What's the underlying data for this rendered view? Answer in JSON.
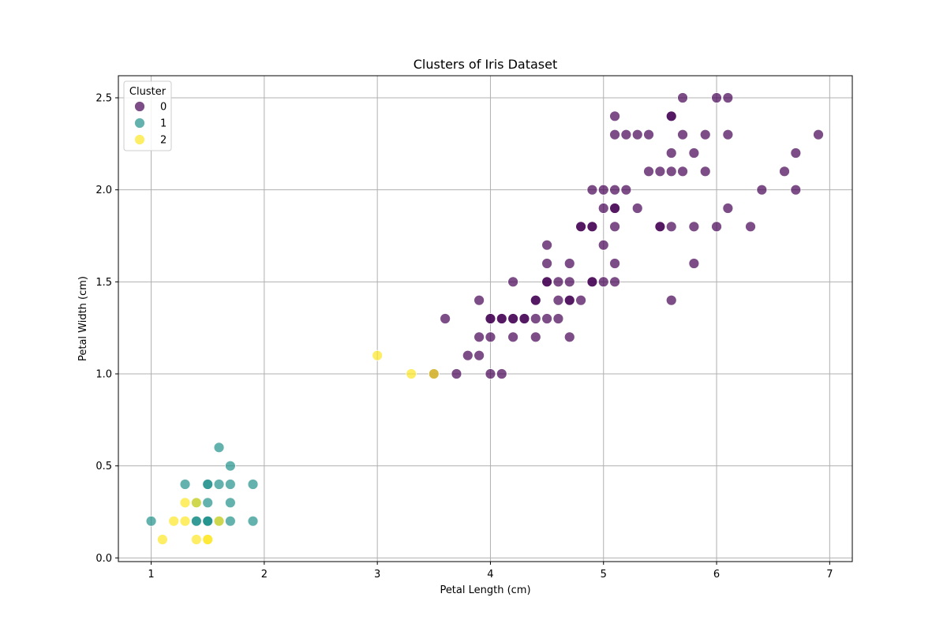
{
  "chart_data": {
    "type": "scatter",
    "title": "Clusters of Iris Dataset",
    "xlabel": "Petal Length (cm)",
    "ylabel": "Petal Width (cm)",
    "xlim": [
      0.71,
      7.2
    ],
    "ylim": [
      -0.02,
      2.62
    ],
    "xticks": [
      1,
      2,
      3,
      4,
      5,
      6,
      7
    ],
    "yticks": [
      0.0,
      0.5,
      1.0,
      1.5,
      2.0,
      2.5
    ],
    "grid": true,
    "legend": {
      "title": "Cluster",
      "placement": "top-left"
    },
    "series": [
      {
        "name": "0",
        "color": "#440154",
        "points": [
          [
            3.5,
            1.0
          ],
          [
            3.6,
            1.3
          ],
          [
            3.7,
            1.0
          ],
          [
            3.8,
            1.1
          ],
          [
            3.9,
            1.1
          ],
          [
            3.9,
            1.2
          ],
          [
            3.9,
            1.4
          ],
          [
            4.0,
            1.0
          ],
          [
            4.0,
            1.2
          ],
          [
            4.0,
            1.3
          ],
          [
            4.0,
            1.3
          ],
          [
            4.1,
            1.0
          ],
          [
            4.1,
            1.3
          ],
          [
            4.1,
            1.3
          ],
          [
            4.2,
            1.2
          ],
          [
            4.2,
            1.3
          ],
          [
            4.2,
            1.3
          ],
          [
            4.2,
            1.5
          ],
          [
            4.3,
            1.3
          ],
          [
            4.3,
            1.3
          ],
          [
            4.4,
            1.2
          ],
          [
            4.4,
            1.3
          ],
          [
            4.4,
            1.4
          ],
          [
            4.4,
            1.4
          ],
          [
            4.5,
            1.3
          ],
          [
            4.5,
            1.5
          ],
          [
            4.5,
            1.5
          ],
          [
            4.5,
            1.6
          ],
          [
            4.5,
            1.7
          ],
          [
            4.6,
            1.3
          ],
          [
            4.6,
            1.4
          ],
          [
            4.6,
            1.5
          ],
          [
            4.7,
            1.2
          ],
          [
            4.7,
            1.4
          ],
          [
            4.7,
            1.4
          ],
          [
            4.7,
            1.5
          ],
          [
            4.7,
            1.6
          ],
          [
            4.8,
            1.4
          ],
          [
            4.8,
            1.8
          ],
          [
            4.8,
            1.8
          ],
          [
            4.9,
            1.5
          ],
          [
            4.9,
            1.5
          ],
          [
            4.9,
            1.8
          ],
          [
            4.9,
            1.8
          ],
          [
            4.9,
            2.0
          ],
          [
            5.0,
            1.5
          ],
          [
            5.0,
            1.7
          ],
          [
            5.0,
            1.9
          ],
          [
            5.0,
            2.0
          ],
          [
            5.1,
            1.5
          ],
          [
            5.1,
            1.6
          ],
          [
            5.1,
            1.8
          ],
          [
            5.1,
            1.9
          ],
          [
            5.1,
            1.9
          ],
          [
            5.1,
            2.0
          ],
          [
            5.1,
            2.3
          ],
          [
            5.1,
            2.4
          ],
          [
            5.2,
            2.0
          ],
          [
            5.2,
            2.3
          ],
          [
            5.3,
            1.9
          ],
          [
            5.3,
            2.3
          ],
          [
            5.4,
            2.1
          ],
          [
            5.4,
            2.3
          ],
          [
            5.5,
            1.8
          ],
          [
            5.5,
            1.8
          ],
          [
            5.5,
            2.1
          ],
          [
            5.6,
            1.4
          ],
          [
            5.6,
            1.8
          ],
          [
            5.6,
            2.1
          ],
          [
            5.6,
            2.2
          ],
          [
            5.6,
            2.4
          ],
          [
            5.6,
            2.4
          ],
          [
            5.7,
            2.1
          ],
          [
            5.7,
            2.3
          ],
          [
            5.7,
            2.5
          ],
          [
            5.8,
            1.6
          ],
          [
            5.8,
            1.8
          ],
          [
            5.8,
            2.2
          ],
          [
            5.9,
            2.1
          ],
          [
            5.9,
            2.3
          ],
          [
            6.0,
            1.8
          ],
          [
            6.0,
            2.5
          ],
          [
            6.1,
            1.9
          ],
          [
            6.1,
            2.3
          ],
          [
            6.1,
            2.5
          ],
          [
            6.3,
            1.8
          ],
          [
            6.4,
            2.0
          ],
          [
            6.6,
            2.1
          ],
          [
            6.7,
            2.0
          ],
          [
            6.7,
            2.2
          ],
          [
            6.9,
            2.3
          ]
        ]
      },
      {
        "name": "1",
        "color": "#21918c",
        "points": [
          [
            1.0,
            0.2
          ],
          [
            1.3,
            0.4
          ],
          [
            1.4,
            0.2
          ],
          [
            1.4,
            0.2
          ],
          [
            1.4,
            0.3
          ],
          [
            1.5,
            0.2
          ],
          [
            1.5,
            0.2
          ],
          [
            1.5,
            0.2
          ],
          [
            1.5,
            0.3
          ],
          [
            1.5,
            0.4
          ],
          [
            1.5,
            0.4
          ],
          [
            1.6,
            0.2
          ],
          [
            1.6,
            0.4
          ],
          [
            1.6,
            0.6
          ],
          [
            1.7,
            0.2
          ],
          [
            1.7,
            0.3
          ],
          [
            1.7,
            0.4
          ],
          [
            1.7,
            0.5
          ],
          [
            1.9,
            0.2
          ],
          [
            1.9,
            0.4
          ]
        ]
      },
      {
        "name": "2",
        "color": "#fde725",
        "points": [
          [
            1.1,
            0.1
          ],
          [
            1.2,
            0.2
          ],
          [
            1.3,
            0.2
          ],
          [
            1.3,
            0.3
          ],
          [
            1.4,
            0.1
          ],
          [
            1.4,
            0.3
          ],
          [
            1.5,
            0.1
          ],
          [
            1.5,
            0.1
          ],
          [
            1.6,
            0.2
          ],
          [
            3.0,
            1.1
          ],
          [
            3.3,
            1.0
          ],
          [
            3.5,
            1.0
          ]
        ]
      }
    ]
  }
}
